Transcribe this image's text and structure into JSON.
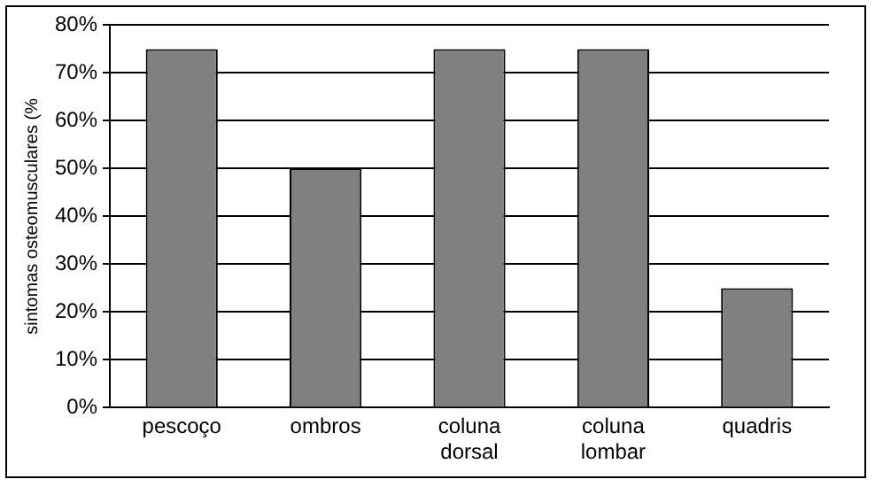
{
  "chart_data": {
    "type": "bar",
    "ylabel": "sintomas osteomusculares (%",
    "categories": [
      "pescoço",
      "ombros",
      "coluna dorsal",
      "coluna lombar",
      "quadris"
    ],
    "values": [
      75,
      50,
      75,
      75,
      25
    ],
    "color": "#808080",
    "ylim": [
      0,
      80
    ],
    "yticks": [
      {
        "value": 0,
        "label": "0%"
      },
      {
        "value": 10,
        "label": "10%"
      },
      {
        "value": 20,
        "label": "20%"
      },
      {
        "value": 30,
        "label": "30%"
      },
      {
        "value": 40,
        "label": "40%"
      },
      {
        "value": 50,
        "label": "50%"
      },
      {
        "value": 60,
        "label": "60%"
      },
      {
        "value": 70,
        "label": "70%"
      },
      {
        "value": 80,
        "label": "80%"
      }
    ],
    "grid": "y"
  }
}
